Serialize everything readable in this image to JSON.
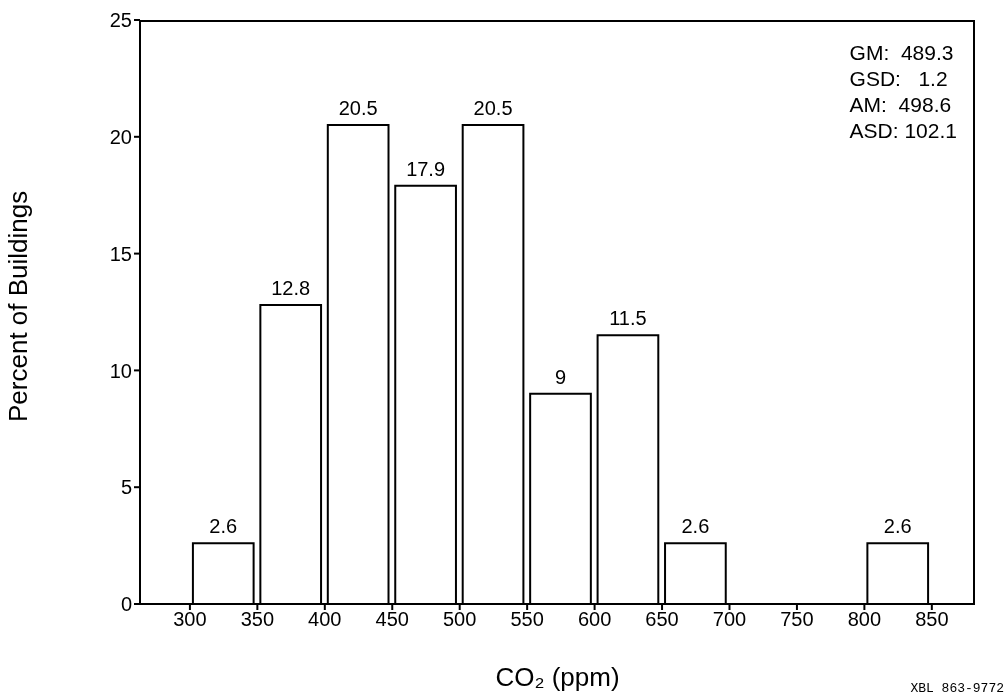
{
  "chart_data": {
    "type": "histogram",
    "bins": [
      300,
      350,
      400,
      450,
      500,
      550,
      600,
      650,
      700,
      750,
      800,
      850
    ],
    "values": [
      2.6,
      12.8,
      20.5,
      17.9,
      20.5,
      9,
      11.5,
      2.6,
      0,
      0,
      2.6
    ],
    "value_labels": [
      "2.6",
      "12.8",
      "20.5",
      "17.9",
      "20.5",
      "9",
      "11.5",
      "2.6",
      null,
      null,
      "2.6"
    ],
    "color": "#ffffff",
    "xlabel": "CO₂ (ppm)",
    "ylabel": "Percent of Buildings",
    "xlim": [
      263,
      882
    ],
    "xticks": [
      300,
      350,
      400,
      450,
      500,
      550,
      600,
      650,
      700,
      750,
      800,
      850
    ],
    "ylim": [
      0,
      25
    ],
    "yticks": [
      0,
      5,
      10,
      15,
      20,
      25
    ],
    "grid": false,
    "legend": false,
    "annotations": [
      "GM:  489.3",
      "GSD:   1.2",
      "AM:  498.6",
      "ASD: 102.1",
      "XBL 863-9772"
    ]
  }
}
